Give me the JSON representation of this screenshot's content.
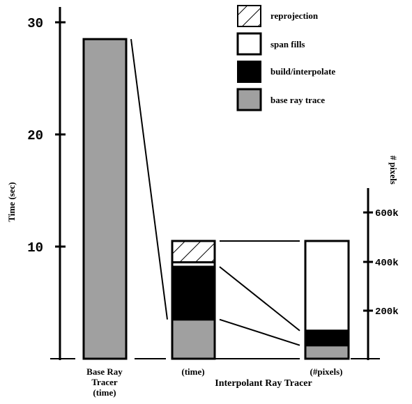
{
  "chart_data": {
    "type": "bar",
    "stacked": true,
    "ylabel": "Time (sec)",
    "ylim": [
      0,
      32
    ],
    "left_ticks": [
      "10",
      "20",
      "30"
    ],
    "left_tick_values": [
      10,
      20,
      30
    ],
    "right_axis": {
      "label": "# pixels",
      "ticks": [
        "200k",
        "400k",
        "600k"
      ],
      "tick_values": [
        200000,
        400000,
        600000
      ]
    },
    "categories": [
      "Base Ray Tracer (time)",
      "(time)",
      "(#pixels)"
    ],
    "category_labels": [
      [
        "Base Ray",
        "Tracer",
        "(time)"
      ],
      [
        "(time)"
      ],
      [
        "(#pixels)"
      ]
    ],
    "group_label": "Interpolant Ray Tracer",
    "series": [
      {
        "name": "base ray trace",
        "color": "#a0a0a0",
        "values": [
          28.5,
          3.5,
          1.2
        ]
      },
      {
        "name": "build/interpolate",
        "color": "#000000",
        "values": [
          0,
          4.7,
          1.3
        ]
      },
      {
        "name": "span fills",
        "color": "#ffffff",
        "values": [
          0,
          0.4,
          8.0
        ]
      },
      {
        "name": "reprojection",
        "color": "hatch",
        "values": [
          0,
          1.9,
          0
        ]
      }
    ],
    "legend": {
      "position": "top-right",
      "order": [
        "reprojection",
        "span fills",
        "build/interpolate",
        "base ray trace"
      ]
    }
  }
}
